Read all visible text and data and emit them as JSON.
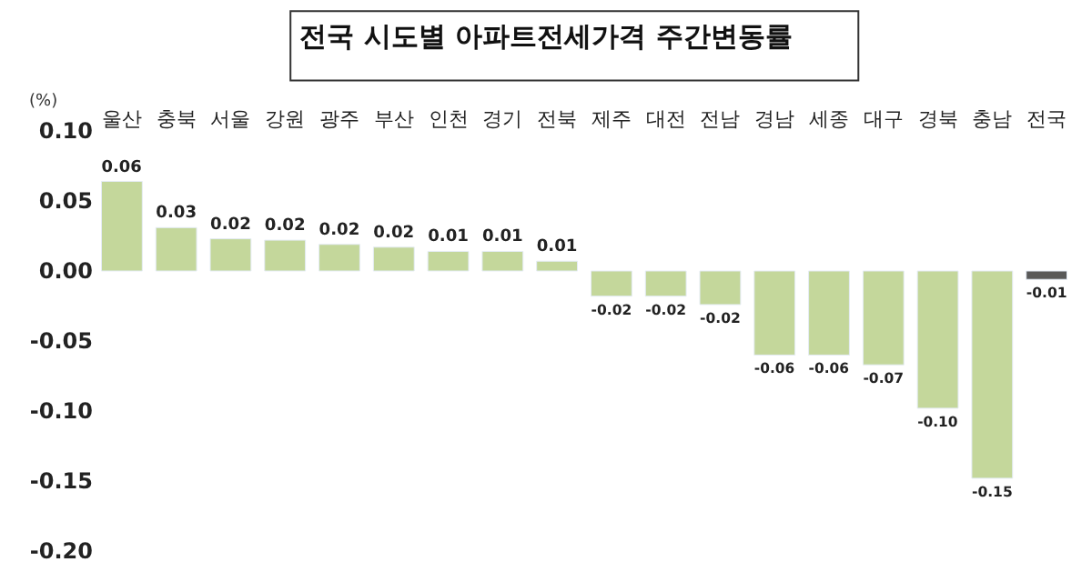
{
  "chart_data": {
    "type": "bar",
    "title": "전국 시도별 아파트전세가격 주간변동률",
    "ylabel": "(%)",
    "categories": [
      "울산",
      "충북",
      "서울",
      "강원",
      "광주",
      "부산",
      "인천",
      "경기",
      "전북",
      "제주",
      "대전",
      "전남",
      "경남",
      "세종",
      "대구",
      "경북",
      "충남",
      "전국"
    ],
    "values": [
      0.064,
      0.031,
      0.023,
      0.022,
      0.019,
      0.017,
      0.014,
      0.014,
      0.007,
      -0.018,
      -0.018,
      -0.024,
      -0.06,
      -0.06,
      -0.067,
      -0.098,
      -0.148,
      -0.006
    ],
    "colors": [
      "#c4d79b",
      "#c4d79b",
      "#c4d79b",
      "#c4d79b",
      "#c4d79b",
      "#c4d79b",
      "#c4d79b",
      "#c4d79b",
      "#c4d79b",
      "#c4d79b",
      "#c4d79b",
      "#c4d79b",
      "#c4d79b",
      "#c4d79b",
      "#c4d79b",
      "#c4d79b",
      "#c4d79b",
      "#595959"
    ],
    "value_labels": [
      "0.06",
      "0.03",
      "0.02",
      "0.02",
      "0.02",
      "0.02",
      "0.01",
      "0.01",
      "0.01",
      "-0.02",
      "-0.02",
      "-0.02",
      "-0.06",
      "-0.06",
      "-0.07",
      "-0.10",
      "-0.15",
      "-0.01"
    ],
    "ylim": [
      -0.2,
      0.1
    ],
    "yticks": [
      {
        "value": 0.1,
        "label": "0.10"
      },
      {
        "value": 0.05,
        "label": "0.05"
      },
      {
        "value": 0,
        "label": "0.00"
      },
      {
        "value": -0.05,
        "label": "-0.05"
      },
      {
        "value": -0.1,
        "label": "-0.10"
      },
      {
        "value": -0.15,
        "label": "-0.15"
      },
      {
        "value": -0.2,
        "label": "-0.20"
      }
    ],
    "legend": false
  }
}
